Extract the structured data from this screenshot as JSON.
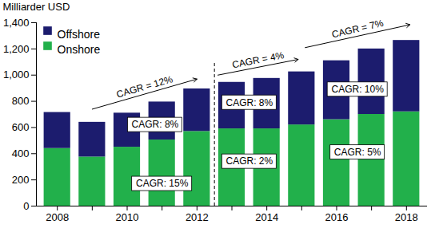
{
  "chart_data": {
    "type": "bar",
    "stacked": true,
    "y_label": "Milliarder USD",
    "categories": [
      "2008",
      null,
      "2010",
      null,
      "2012",
      null,
      "2014",
      null,
      "2016",
      null,
      "2018"
    ],
    "series": [
      {
        "name": "Offshore",
        "color": "#1c1c6e",
        "values": [
          275,
          265,
          260,
          290,
          325,
          355,
          385,
          405,
          450,
          500,
          545
        ]
      },
      {
        "name": "Onshore",
        "color": "#22b04b",
        "values": [
          440,
          375,
          450,
          505,
          570,
          590,
          590,
          620,
          660,
          700,
          720
        ]
      }
    ],
    "ylim": [
      0,
      1400
    ],
    "yticks": [
      0,
      200,
      400,
      600,
      800,
      1000,
      1200,
      1400
    ],
    "grid": false,
    "legend": "top-left",
    "annotations": [
      "CAGR = 12%",
      "CAGR = 4%",
      "CAGR = 7%",
      "CAGR: 8%",
      "CAGR: 15%",
      "CAGR: 8%",
      "CAGR: 2%",
      "CAGR: 10%",
      "CAGR: 5%"
    ]
  }
}
